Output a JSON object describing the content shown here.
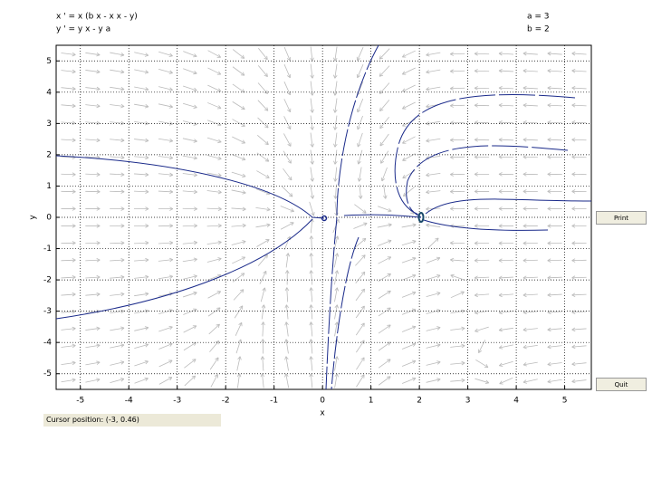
{
  "window": {
    "equations": [
      "x ' = x (b x - x x - y)",
      "y ' = y x - y a"
    ],
    "parameters": [
      {
        "value": 3,
        "label": "a = 3"
      },
      {
        "value": 2,
        "label": "b = 2"
      }
    ],
    "buttons": [
      "Print",
      "Quit"
    ],
    "cursor_position": "Cursor position:  (-3, 0.46)"
  },
  "chart_data": {
    "type": "phase-plane",
    "xlabel": "x",
    "ylabel": "y",
    "xlim": [
      -5.5,
      5.55
    ],
    "ylim": [
      -5.5,
      5.5
    ],
    "xticks": [
      -5,
      -4,
      -3,
      -2,
      -1,
      0,
      1,
      2,
      3,
      4,
      5
    ],
    "yticks": [
      -5,
      -4,
      -3,
      -2,
      -1,
      0,
      1,
      2,
      3,
      4,
      5
    ],
    "grid": true
  }
}
